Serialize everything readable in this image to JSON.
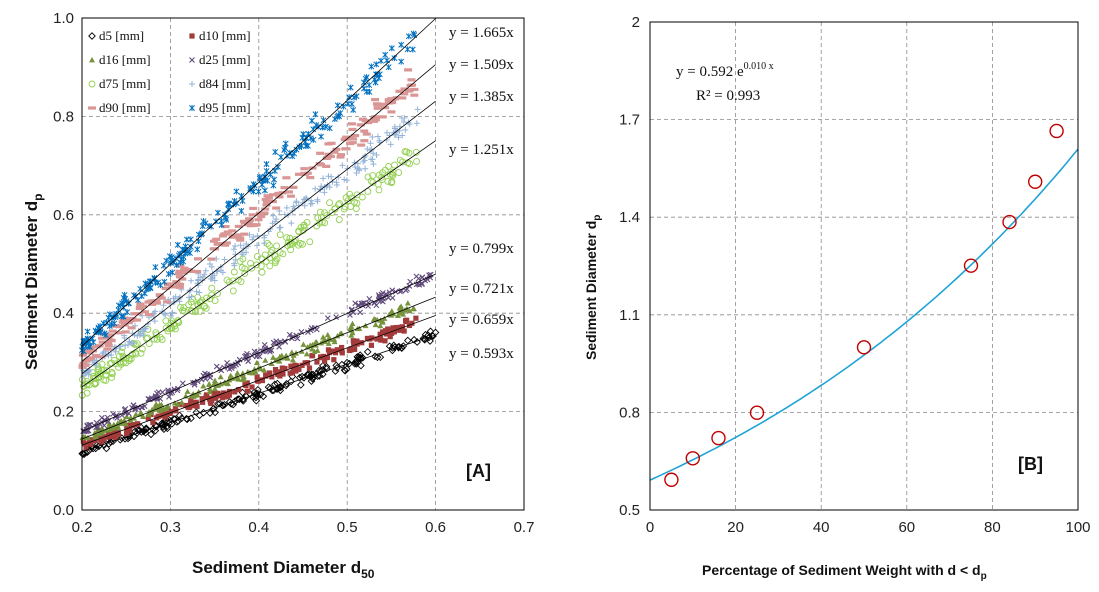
{
  "chart_data": [
    {
      "type": "scatter",
      "panel_label": "[A]",
      "xlabel": "Sediment Diameter d",
      "xlabel_sub": "50",
      "ylabel": "Sediment Diameter  d",
      "ylabel_sub": "p",
      "xlim": [
        0.2,
        0.7
      ],
      "ylim": [
        0.0,
        1.0
      ],
      "x_ticks": [
        "0.2",
        "0.3",
        "0.4",
        "0.5",
        "0.6",
        "0.7"
      ],
      "y_ticks": [
        "0.0",
        "0.2",
        "0.4",
        "0.6",
        "0.8",
        "1.0"
      ],
      "grid": true,
      "legend_position": "top-left",
      "series": [
        {
          "name": "d5  [mm]",
          "marker": "diamond-open",
          "color": "#000000",
          "slope": 0.593,
          "x_range": [
            0.2,
            0.625
          ]
        },
        {
          "name": "d10 [mm]",
          "marker": "square",
          "color": "#a33b3b",
          "slope": 0.659,
          "x_range": [
            0.2,
            0.6
          ]
        },
        {
          "name": "d16 [mm]",
          "marker": "triangle",
          "color": "#77933c",
          "slope": 0.721,
          "x_range": [
            0.2,
            0.6
          ]
        },
        {
          "name": "d25 [mm]",
          "marker": "x",
          "color": "#604a7b",
          "slope": 0.799,
          "x_range": [
            0.2,
            0.625
          ]
        },
        {
          "name": "d75 [mm]",
          "marker": "circle-open",
          "color": "#92d050",
          "slope": 1.251,
          "x_range": [
            0.2,
            0.6
          ]
        },
        {
          "name": "d84 [mm]",
          "marker": "plus",
          "color": "#95b3d7",
          "slope": 1.385,
          "x_range": [
            0.2,
            0.6
          ]
        },
        {
          "name": "d90 [mm]",
          "marker": "dash",
          "color": "#d99694",
          "slope": 1.509,
          "x_range": [
            0.2,
            0.6
          ]
        },
        {
          "name": "d95 [mm]",
          "marker": "star",
          "color": "#0070c0",
          "slope": 1.665,
          "x_range": [
            0.2,
            0.6
          ]
        }
      ],
      "trendlines": [
        {
          "label": "y = 1.665x",
          "slope": 1.665
        },
        {
          "label": "y = 1.509x",
          "slope": 1.509
        },
        {
          "label": "y = 1.385x",
          "slope": 1.385
        },
        {
          "label": "y = 1.251x",
          "slope": 1.251
        },
        {
          "label": "y = 0.799x",
          "slope": 0.799
        },
        {
          "label": "y = 0.721x",
          "slope": 0.721
        },
        {
          "label": "y = 0.659x",
          "slope": 0.659
        },
        {
          "label": "y = 0.593x",
          "slope": 0.593
        }
      ]
    },
    {
      "type": "scatter",
      "panel_label": "[B]",
      "xlabel": "Percentage of Sediment Weight with  d < d",
      "xlabel_sub": "p",
      "ylabel": "Sediment Diameter d",
      "ylabel_sub": "p",
      "xlim": [
        0,
        100
      ],
      "ylim": [
        0.5,
        2.0
      ],
      "x_ticks": [
        "0",
        "20",
        "40",
        "60",
        "80",
        "100"
      ],
      "y_ticks": [
        "0.5",
        "0.8",
        "1.1",
        "1.4",
        "1.7",
        "2"
      ],
      "grid": true,
      "x": [
        5,
        10,
        16,
        25,
        50,
        75,
        84,
        90,
        95
      ],
      "y": [
        0.593,
        0.659,
        0.721,
        0.799,
        1.0,
        1.251,
        1.385,
        1.509,
        1.665
      ],
      "marker": "circle-open",
      "marker_color": "#c00000",
      "fit": {
        "a": 0.592,
        "b": 0.01,
        "color": "#1fa3d6"
      },
      "equation_main": "y = 0.592 e",
      "equation_exp": "0.010 x",
      "r_squared": "R² = 0.993"
    }
  ]
}
